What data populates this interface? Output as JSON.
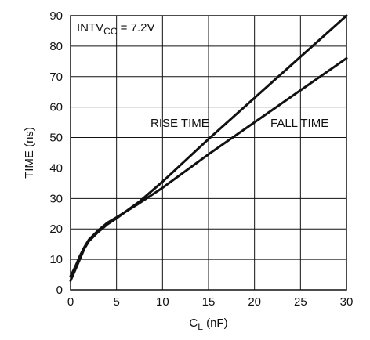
{
  "chart_data": {
    "type": "line",
    "title": "",
    "xlabel_main": "C",
    "xlabel_sub": "L",
    "xlabel_suffix": " (nF)",
    "ylabel": "TIME (ns)",
    "xlim": [
      0,
      30
    ],
    "ylim": [
      0,
      90
    ],
    "x_ticks": [
      "0",
      "5",
      "10",
      "15",
      "20",
      "25",
      "30"
    ],
    "y_ticks": [
      "0",
      "10",
      "20",
      "30",
      "40",
      "50",
      "60",
      "70",
      "80",
      "90"
    ],
    "grid": true,
    "annotation_condition": {
      "prefix": "INTV",
      "sub": "CC",
      "suffix": " = 7.2V"
    },
    "series": [
      {
        "name": "RISE TIME",
        "x": [
          0,
          0.5,
          1,
          1.5,
          2,
          3,
          4,
          5,
          7.5,
          10,
          15,
          20,
          25,
          30
        ],
        "y": [
          3,
          6.5,
          10,
          13.5,
          16,
          19,
          21.5,
          23.5,
          29,
          35.5,
          49.5,
          63,
          76.5,
          90
        ]
      },
      {
        "name": "FALL TIME",
        "x": [
          0,
          0.5,
          1,
          1.5,
          2,
          3,
          4,
          5,
          7.5,
          10,
          15,
          20,
          25,
          30
        ],
        "y": [
          4.5,
          7.5,
          11,
          14,
          16.5,
          19.5,
          22,
          23.8,
          28.5,
          33.5,
          44.5,
          55,
          65.5,
          76
        ]
      }
    ]
  }
}
